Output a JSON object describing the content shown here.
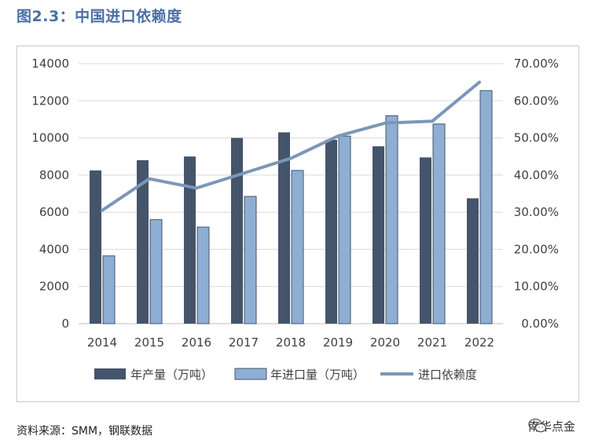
{
  "header": {
    "title": "图2.3：中国进口依赖度"
  },
  "footer": {
    "source": "资料来源：SMM，钢联数据",
    "brand": "南华点金"
  },
  "colors": {
    "production": "#44546a",
    "import": "#8eaed3",
    "ratio": "#7b97b8",
    "title": "#4a6fa5"
  },
  "chart_data": {
    "type": "bar",
    "categories": [
      "2014",
      "2015",
      "2016",
      "2017",
      "2018",
      "2019",
      "2020",
      "2021",
      "2022"
    ],
    "series": [
      {
        "name": "年产量（万吨）",
        "type": "bar",
        "axis": "left",
        "values": [
          8250,
          8800,
          9000,
          10000,
          10300,
          9900,
          9550,
          8950,
          6750
        ]
      },
      {
        "name": "年进口量（万吨）",
        "type": "bar",
        "axis": "left",
        "values": [
          3650,
          5600,
          5200,
          6850,
          8250,
          10100,
          11200,
          10750,
          12550
        ]
      },
      {
        "name": "进口依赖度",
        "type": "line",
        "axis": "right",
        "values": [
          0.305,
          0.39,
          0.365,
          0.405,
          0.445,
          0.505,
          0.54,
          0.545,
          0.65
        ]
      }
    ],
    "y_left": {
      "ylim": [
        0,
        14000
      ],
      "ticks": [
        "0",
        "2000",
        "4000",
        "6000",
        "8000",
        "10000",
        "12000",
        "14000"
      ]
    },
    "y_right": {
      "ylim": [
        0,
        0.7
      ],
      "ticks": [
        "0.00%",
        "10.00%",
        "20.00%",
        "30.00%",
        "40.00%",
        "50.00%",
        "60.00%",
        "70.00%"
      ]
    },
    "grid": true,
    "legend": "bottom"
  }
}
